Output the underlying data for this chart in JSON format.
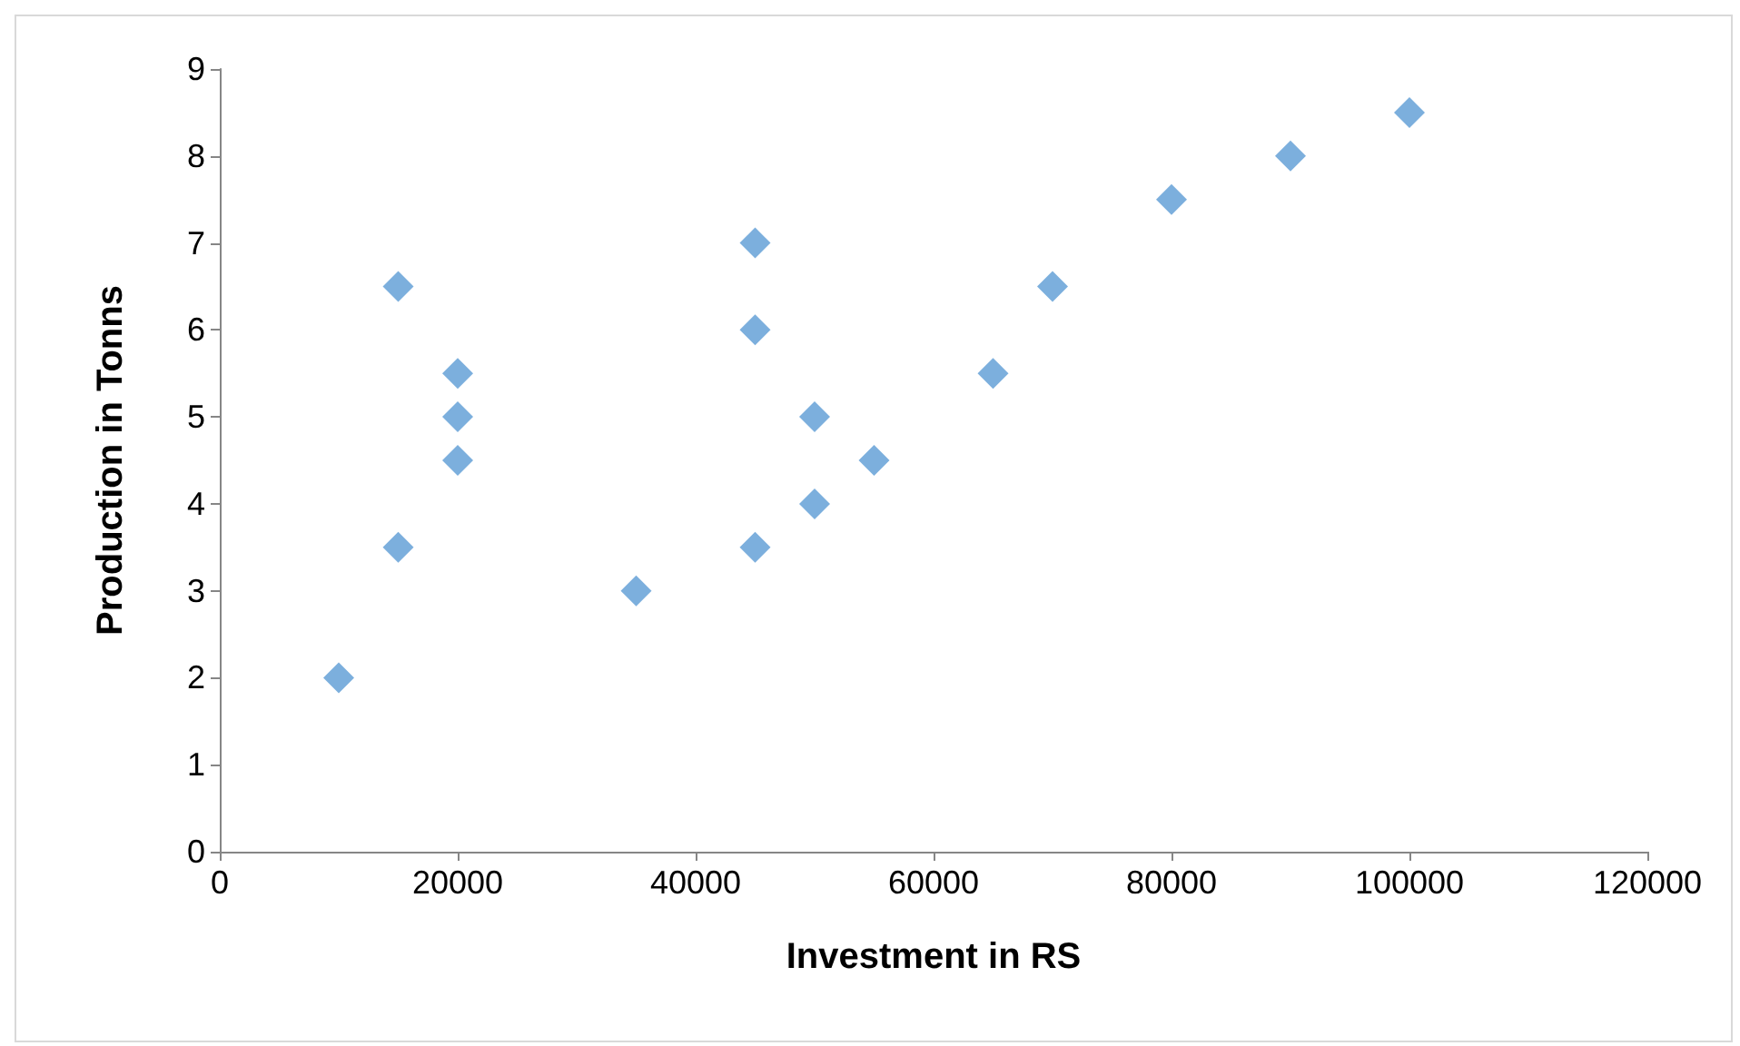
{
  "chart_data": {
    "type": "scatter",
    "xlabel": "Investment in RS",
    "ylabel": "Production in Tonns",
    "x": [
      10000,
      15000,
      15000,
      20000,
      20000,
      20000,
      35000,
      45000,
      45000,
      45000,
      50000,
      50000,
      55000,
      65000,
      70000,
      80000,
      90000,
      100000
    ],
    "series": [
      {
        "color": "#5b9bd5",
        "values": [
          2,
          3.5,
          6.5,
          4.5,
          5,
          5.5,
          3,
          3.5,
          6,
          7,
          4,
          5,
          4.5,
          5.5,
          6.5,
          7.5,
          8,
          8.5
        ]
      }
    ],
    "marker": "diamond",
    "xlim": [
      0,
      120000
    ],
    "xticks": [
      0,
      20000,
      40000,
      60000,
      80000,
      100000,
      120000
    ],
    "ylim": [
      0,
      9
    ],
    "yticks": [
      0,
      1,
      2,
      3,
      4,
      5,
      6,
      7,
      8,
      9
    ]
  }
}
